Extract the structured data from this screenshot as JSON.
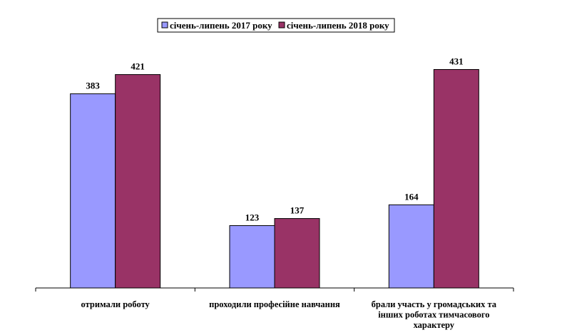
{
  "chart_data": {
    "type": "bar",
    "categories": [
      [
        "отримали роботу"
      ],
      [
        "проходили професійне навчання"
      ],
      [
        "брали участь у громадських та",
        "інших роботах тимчасового",
        "характеру"
      ]
    ],
    "series": [
      {
        "name": "січень-липень 2017 року",
        "values": [
          383,
          123,
          164
        ],
        "color": "#9999ff"
      },
      {
        "name": "січень-липень 2018 року",
        "values": [
          421,
          137,
          431
        ],
        "color": "#993366"
      }
    ],
    "ylim": [
      0,
      500
    ],
    "legend": "top-center",
    "grid": false,
    "data_labels": true
  }
}
